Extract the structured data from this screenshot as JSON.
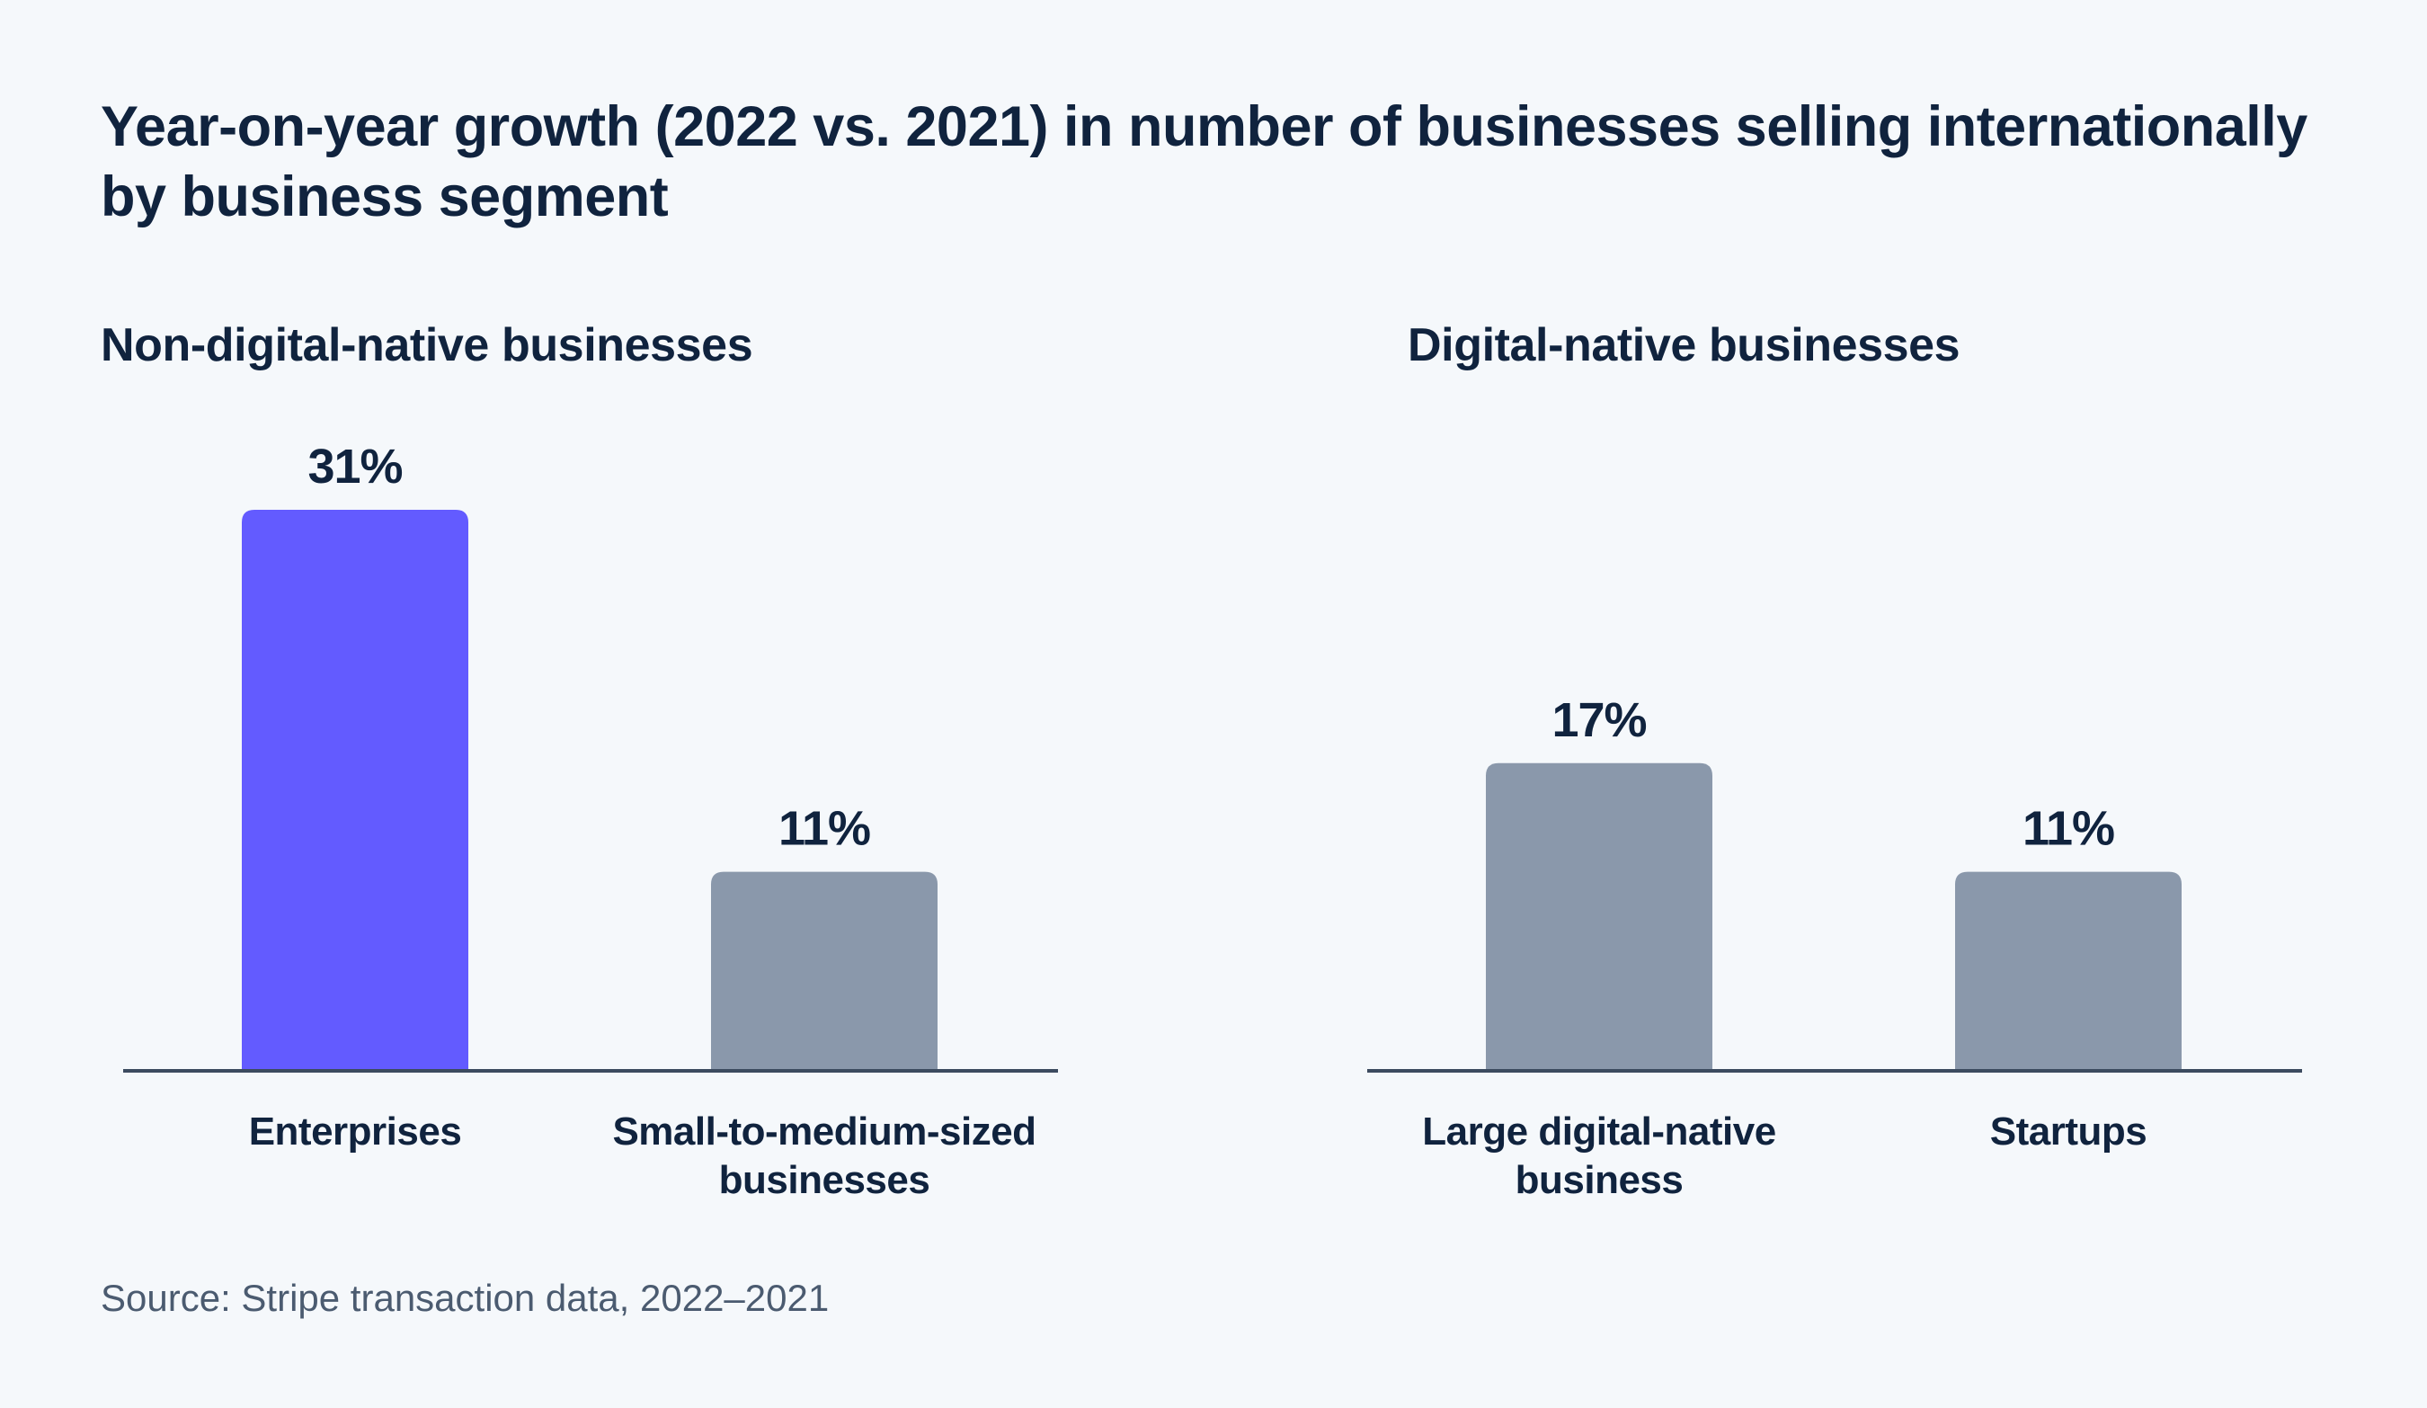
{
  "title": "Year-on-year growth (2022 vs. 2021) in number of businesses selling internationally by business segment",
  "source": "Source: Stripe transaction data, 2022–2021",
  "colors": {
    "background": "#f5f8fb",
    "text": "#10233e",
    "highlight_bar": "#635bff",
    "neutral_bar": "#8a98ab",
    "axis": "#3c4b5f"
  },
  "chart_data": [
    {
      "type": "bar",
      "title": "Non-digital-native businesses",
      "categories": [
        [
          "Enterprises"
        ],
        [
          "Small-to-medium-sized",
          "businesses"
        ]
      ],
      "values": [
        31,
        11
      ],
      "value_labels": [
        "31%",
        "11%"
      ],
      "unit": "%",
      "ylim": [
        0,
        31
      ],
      "bar_colors": [
        "#635bff",
        "#8a98ab"
      ],
      "grid": false,
      "legend": "none"
    },
    {
      "type": "bar",
      "title": "Digital-native businesses",
      "categories": [
        [
          "Large digital-native",
          "business"
        ],
        [
          "Startups"
        ]
      ],
      "values": [
        17,
        11
      ],
      "value_labels": [
        "17%",
        "11%"
      ],
      "unit": "%",
      "ylim": [
        0,
        31
      ],
      "bar_colors": [
        "#8a98ab",
        "#8a98ab"
      ],
      "grid": false,
      "legend": "none"
    }
  ]
}
